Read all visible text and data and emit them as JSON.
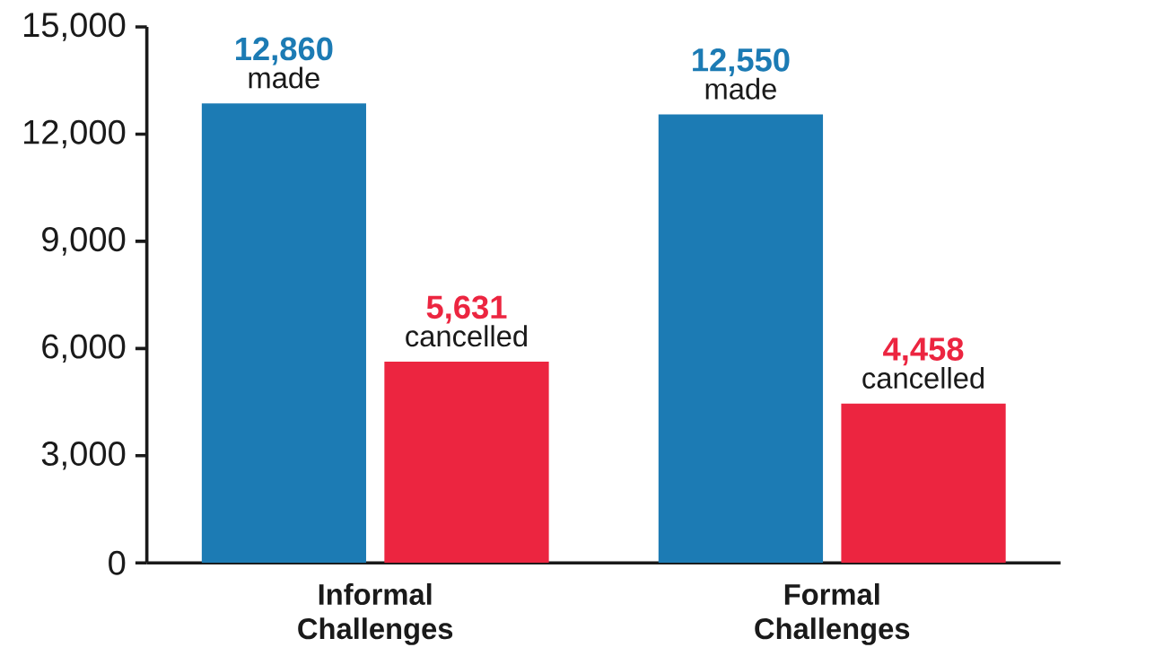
{
  "chart_data": {
    "type": "bar",
    "categories": [
      "Informal Challenges",
      "Formal Challenges"
    ],
    "series": [
      {
        "name": "made",
        "color": "#1c7bb4",
        "values": [
          12860,
          12550
        ],
        "value_labels": [
          "12,860",
          "12,550"
        ]
      },
      {
        "name": "cancelled",
        "color": "#ec2540",
        "values": [
          5631,
          4458
        ],
        "value_labels": [
          "5,631",
          "4,458"
        ]
      }
    ],
    "ylim": [
      0,
      15000
    ],
    "yticks": [
      {
        "value": 0,
        "label": "0"
      },
      {
        "value": 3000,
        "label": "3,000"
      },
      {
        "value": 6000,
        "label": "6,000"
      },
      {
        "value": 9000,
        "label": "9,000"
      },
      {
        "value": 12000,
        "label": "12,000"
      },
      {
        "value": 15000,
        "label": "15,000"
      }
    ],
    "grid": false,
    "legend": false
  }
}
